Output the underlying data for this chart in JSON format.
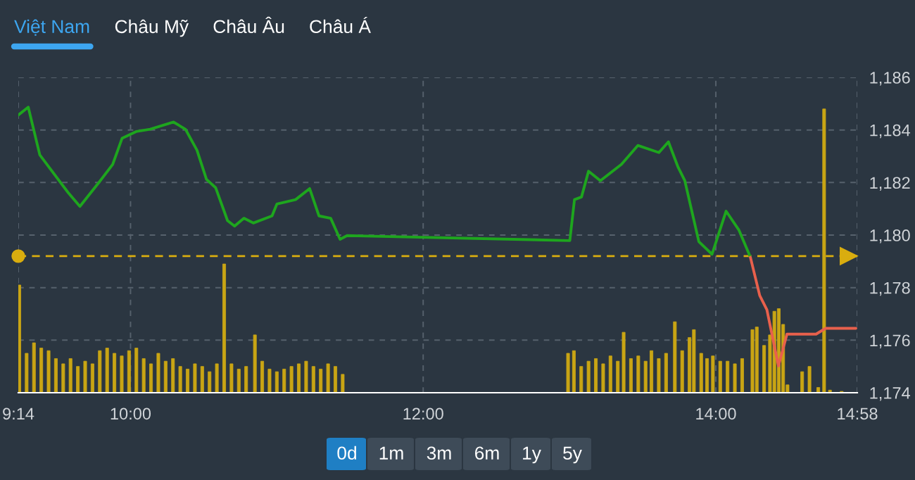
{
  "chart_data": {
    "type": "line",
    "xlim": [
      9.233,
      14.9667
    ],
    "xticks": [
      {
        "value": 9.233,
        "label": "9:14"
      },
      {
        "value": 10,
        "label": "10:00"
      },
      {
        "value": 12,
        "label": "12:00"
      },
      {
        "value": 14,
        "label": "14:00"
      },
      {
        "value": 14.9667,
        "label": "14:58"
      }
    ],
    "ylim": [
      1174,
      1186
    ],
    "yticks": [
      {
        "value": 1174,
        "label": "1,174"
      },
      {
        "value": 1176,
        "label": "1,176"
      },
      {
        "value": 1178,
        "label": "1,178"
      },
      {
        "value": 1180,
        "label": "1,180"
      },
      {
        "value": 1182,
        "label": "1,182"
      },
      {
        "value": 1184,
        "label": "1,184"
      },
      {
        "value": 1186,
        "label": "1,186"
      }
    ],
    "grid": true,
    "legend": false,
    "marker": "none",
    "line_style": "solid",
    "series": [
      {
        "type": "bar",
        "color": "#c9a514",
        "x": [
          9.24,
          9.29,
          9.34,
          9.39,
          9.44,
          9.49,
          9.54,
          9.59,
          9.64,
          9.69,
          9.74,
          9.79,
          9.84,
          9.89,
          9.94,
          9.99,
          10.04,
          10.09,
          10.14,
          10.19,
          10.24,
          10.29,
          10.34,
          10.39,
          10.44,
          10.49,
          10.54,
          10.59,
          10.64,
          10.69,
          10.74,
          10.79,
          10.85,
          10.9,
          10.95,
          11.0,
          11.05,
          11.1,
          11.15,
          11.2,
          11.25,
          11.3,
          11.35,
          11.4,
          11.45,
          12.99,
          13.03,
          13.08,
          13.13,
          13.18,
          13.23,
          13.28,
          13.33,
          13.37,
          13.42,
          13.47,
          13.52,
          13.56,
          13.61,
          13.66,
          13.72,
          13.77,
          13.82,
          13.85,
          13.9,
          13.94,
          13.98,
          14.03,
          14.08,
          14.13,
          14.18,
          14.25,
          14.28,
          14.33,
          14.37,
          14.4,
          14.43,
          14.46,
          14.49,
          14.59,
          14.64,
          14.7,
          14.74,
          14.78,
          14.86
        ],
        "base": [
          1174,
          1174,
          1174,
          1174,
          1174,
          1174,
          1174,
          1174,
          1174,
          1174,
          1174,
          1174,
          1174,
          1174,
          1174,
          1174,
          1174,
          1174,
          1174,
          1174,
          1174,
          1174,
          1174,
          1174,
          1174,
          1174,
          1174,
          1174,
          1174,
          1174,
          1174,
          1174,
          1174,
          1174,
          1174,
          1174,
          1174,
          1174,
          1174,
          1174,
          1174,
          1174,
          1174,
          1174,
          1174,
          1174,
          1174,
          1174,
          1174,
          1174,
          1174,
          1174,
          1174,
          1174,
          1174,
          1174,
          1174,
          1174,
          1174,
          1174,
          1174,
          1174,
          1174,
          1174,
          1174,
          1174,
          1174,
          1174,
          1174,
          1174,
          1174,
          1174,
          1174,
          1174,
          1174,
          1174,
          1174,
          1174,
          1174,
          1174,
          1174,
          1174,
          1174,
          1174,
          1174
        ],
        "values": [
          4.1,
          1.5,
          1.9,
          1.7,
          1.6,
          1.3,
          1.1,
          1.3,
          1.0,
          1.2,
          1.1,
          1.6,
          1.7,
          1.5,
          1.4,
          1.6,
          1.7,
          1.3,
          1.1,
          1.5,
          1.2,
          1.3,
          1.0,
          0.9,
          1.1,
          1.0,
          0.8,
          1.1,
          4.9,
          1.1,
          0.9,
          1.0,
          2.2,
          1.2,
          0.9,
          0.8,
          0.9,
          1.0,
          1.1,
          1.2,
          1.0,
          0.9,
          1.1,
          1.0,
          0.7,
          1.5,
          1.6,
          1.0,
          1.2,
          1.3,
          1.1,
          1.4,
          1.2,
          2.3,
          1.3,
          1.4,
          1.2,
          1.6,
          1.3,
          1.5,
          2.7,
          1.6,
          2.1,
          2.4,
          1.5,
          1.3,
          1.4,
          1.2,
          1.2,
          1.1,
          1.3,
          2.4,
          2.5,
          1.8,
          2.2,
          3.1,
          3.2,
          2.6,
          0.3,
          0.8,
          1.0,
          0.2,
          10.8,
          0.1,
          0.05
        ]
      },
      {
        "color": "#1ea61e",
        "x": [
          9.233,
          9.301,
          9.38,
          9.573,
          9.654,
          9.781,
          9.878,
          9.942,
          10.038,
          10.134,
          10.294,
          10.375,
          10.454,
          10.519,
          10.582,
          10.663,
          10.711,
          10.775,
          10.839,
          10.967,
          11.0,
          11.128,
          11.224,
          11.288,
          11.368,
          11.432,
          11.48,
          13.002,
          13.034,
          13.082,
          13.13,
          13.211,
          13.355,
          13.467,
          13.611,
          13.676,
          13.74,
          13.788,
          13.884,
          13.974,
          14.07,
          14.157,
          14.236
        ],
        "values": [
          1184.57,
          1184.87,
          1183.05,
          1181.62,
          1181.09,
          1181.98,
          1182.69,
          1183.68,
          1183.94,
          1184.03,
          1184.3,
          1184.03,
          1183.23,
          1182.12,
          1181.8,
          1180.55,
          1180.34,
          1180.64,
          1180.46,
          1180.73,
          1181.18,
          1181.35,
          1181.77,
          1180.73,
          1180.64,
          1179.84,
          1179.98,
          1179.79,
          1181.35,
          1181.45,
          1182.43,
          1182.07,
          1182.69,
          1183.41,
          1183.14,
          1183.55,
          1182.61,
          1182.07,
          1179.75,
          1179.27,
          1180.91,
          1180.2,
          1179.16
        ]
      },
      {
        "color": "#e8604c",
        "x": [
          14.236,
          14.3,
          14.349,
          14.428,
          14.486,
          14.685,
          14.75,
          14.957
        ],
        "values": [
          1179.16,
          1177.7,
          1177.16,
          1175.02,
          1176.23,
          1176.23,
          1176.45,
          1176.45
        ]
      }
    ],
    "ref_lines": [
      {
        "axis": "y",
        "value": 1179.2,
        "color": "#d9ad0f",
        "line_style": "dashed"
      }
    ],
    "annotations": [
      "Việt Nam",
      "Châu Mỹ",
      "Châu Âu",
      "Châu Á",
      "0d",
      "1m",
      "3m",
      "6m",
      "1y",
      "5y"
    ]
  }
}
